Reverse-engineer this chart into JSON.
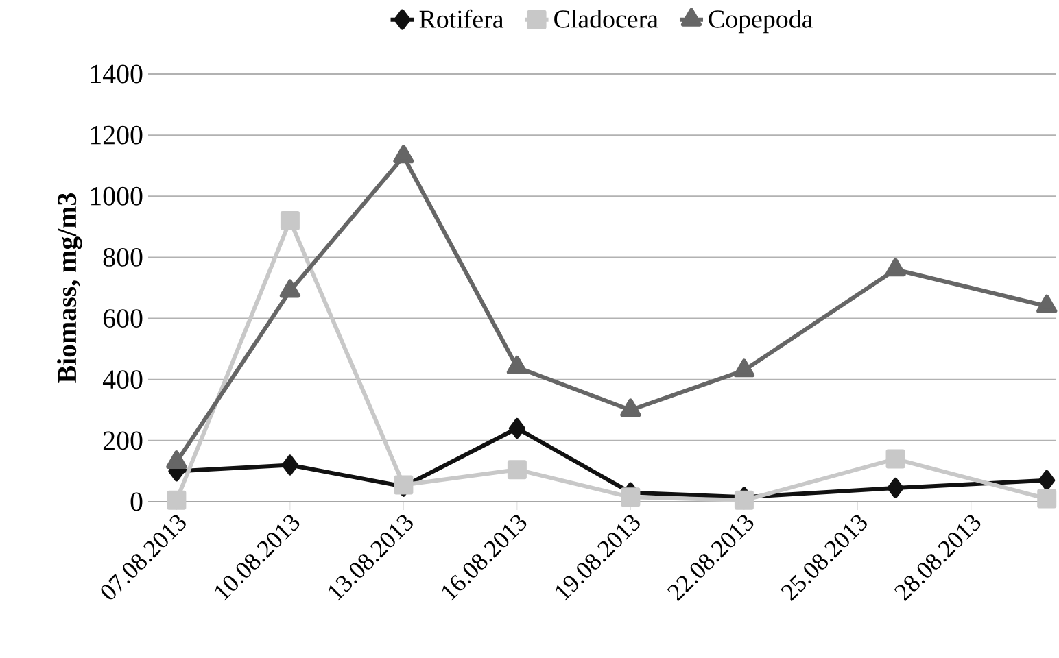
{
  "chart_data": {
    "type": "line",
    "ylabel": "Biomass, mg/m3",
    "x": [
      "2013-08-07",
      "2013-08-10",
      "2013-08-13",
      "2013-08-16",
      "2013-08-19",
      "2013-08-22",
      "2013-08-26",
      "2013-08-30"
    ],
    "series": [
      {
        "name": "Rotifera",
        "color": "#111111",
        "marker": "diamond",
        "values": [
          100,
          120,
          50,
          240,
          30,
          15,
          45,
          70
        ]
      },
      {
        "name": "Cladocera",
        "color": "#c8c8c8",
        "marker": "square",
        "values": [
          5,
          920,
          55,
          105,
          15,
          5,
          140,
          10
        ]
      },
      {
        "name": "Copepoda",
        "color": "#666666",
        "marker": "triangle",
        "values": [
          130,
          690,
          1130,
          440,
          300,
          430,
          760,
          640
        ]
      }
    ],
    "xlim": [
      "2013-08-06T06:00",
      "2013-08-30T06:00"
    ],
    "xticks": [
      {
        "value": "2013-08-07",
        "label": "07.08.2013"
      },
      {
        "value": "2013-08-10",
        "label": "10.08.2013"
      },
      {
        "value": "2013-08-13",
        "label": "13.08.2013"
      },
      {
        "value": "2013-08-16",
        "label": "16.08.2013"
      },
      {
        "value": "2013-08-19",
        "label": "19.08.2013"
      },
      {
        "value": "2013-08-22",
        "label": "22.08.2013"
      },
      {
        "value": "2013-08-25",
        "label": "25.08.2013"
      },
      {
        "value": "2013-08-28",
        "label": "28.08.2013"
      }
    ],
    "ylim": [
      0,
      1400
    ],
    "yticks": [
      0,
      200,
      400,
      600,
      800,
      1000,
      1200,
      1400
    ],
    "grid": "y",
    "legend": "top",
    "line_style": "solid"
  }
}
